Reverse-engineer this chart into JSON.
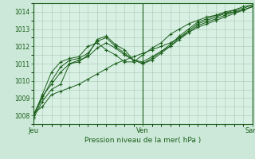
{
  "title": "",
  "xlabel": "Pression niveau de la mer( hPa )",
  "ylabel": "",
  "background_color": "#cce8d8",
  "plot_bg_color": "#d8f0e4",
  "grid_color": "#a8c8b4",
  "line_color": "#1a5e1a",
  "marker_color": "#1a5e1a",
  "ylim": [
    1007.5,
    1014.5
  ],
  "xlim": [
    0,
    48
  ],
  "yticks": [
    1008,
    1009,
    1010,
    1011,
    1012,
    1013,
    1014
  ],
  "xtick_positions": [
    0,
    24,
    48
  ],
  "xtick_labels": [
    "Jeu",
    "Ven",
    "Sam"
  ],
  "series": [
    [
      1007.9,
      1009.2,
      1010.5,
      1011.1,
      1011.3,
      1011.4,
      1012.0,
      1012.2,
      1011.8,
      1011.5,
      1011.1,
      1011.1,
      1011.5,
      1011.9,
      1012.2,
      1012.7,
      1013.0,
      1013.3,
      1013.5,
      1013.7,
      1013.8,
      1013.9,
      1014.0,
      1014.1,
      1014.3
    ],
    [
      1007.8,
      1008.8,
      1009.5,
      1009.8,
      1011.0,
      1011.1,
      1011.5,
      1012.4,
      1012.6,
      1012.1,
      1011.8,
      1011.2,
      1011.1,
      1011.4,
      1011.7,
      1012.0,
      1012.5,
      1012.9,
      1013.3,
      1013.5,
      1013.7,
      1013.9,
      1014.1,
      1014.2,
      1014.4
    ],
    [
      1007.9,
      1009.0,
      1010.0,
      1010.8,
      1011.2,
      1011.3,
      1011.6,
      1012.3,
      1012.5,
      1012.0,
      1011.6,
      1011.2,
      1011.0,
      1011.3,
      1011.7,
      1012.1,
      1012.6,
      1013.0,
      1013.4,
      1013.6,
      1013.8,
      1014.0,
      1014.1,
      1014.3,
      1014.4
    ],
    [
      1008.0,
      1009.1,
      1009.8,
      1010.5,
      1011.0,
      1011.2,
      1011.4,
      1011.9,
      1012.2,
      1011.9,
      1011.5,
      1011.2,
      1011.0,
      1011.2,
      1011.6,
      1012.0,
      1012.4,
      1012.8,
      1013.2,
      1013.4,
      1013.6,
      1013.8,
      1014.0,
      1014.1,
      1014.3
    ],
    [
      1008.1,
      1008.5,
      1009.2,
      1009.4,
      1009.6,
      1009.8,
      1010.1,
      1010.4,
      1010.7,
      1011.0,
      1011.2,
      1011.4,
      1011.6,
      1011.8,
      1012.0,
      1012.2,
      1012.5,
      1012.8,
      1013.1,
      1013.3,
      1013.5,
      1013.7,
      1013.9,
      1014.1,
      1014.3
    ]
  ]
}
